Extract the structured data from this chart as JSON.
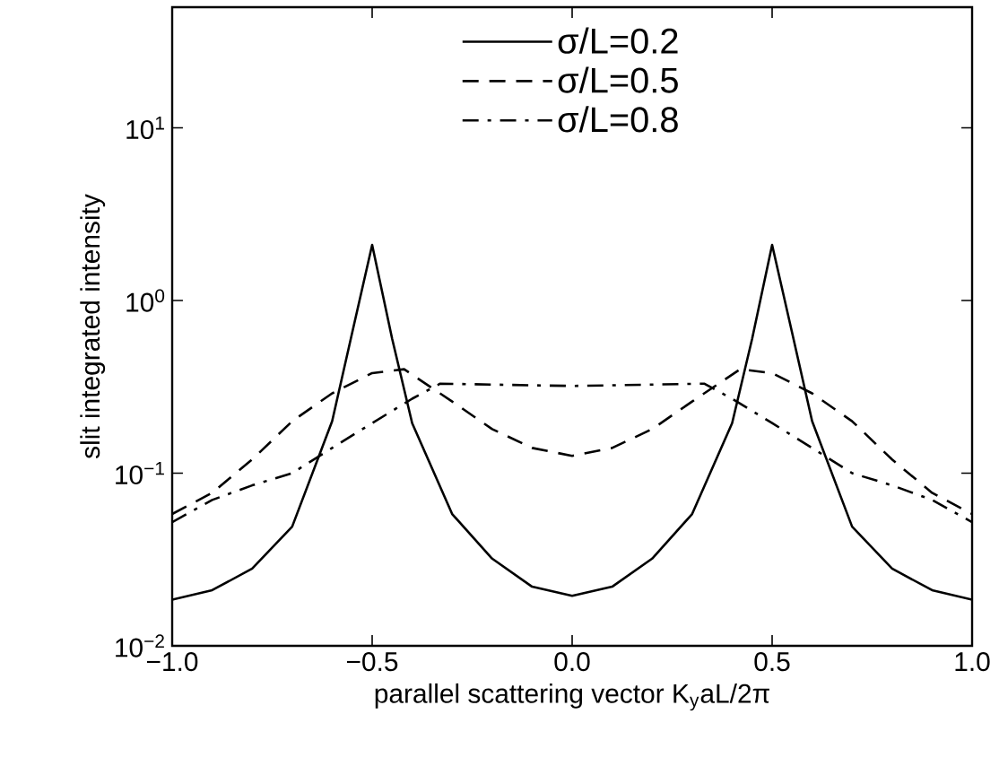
{
  "chart_data": {
    "type": "line",
    "xlabel": "parallel scattering vector K$_{y}$aL/2π",
    "ylabel": "slit integrated intensity",
    "log": "y",
    "grid": false,
    "legend": "top",
    "marker": "none",
    "xlim": [
      -1,
      1
    ],
    "ylim": [
      0.01,
      50
    ],
    "xticks": [
      {
        "value": -1,
        "label": "−1.0"
      },
      {
        "value": -0.5,
        "label": "−0.5"
      },
      {
        "value": 0,
        "label": "0.0"
      },
      {
        "value": 0.5,
        "label": "0.5"
      },
      {
        "value": 1,
        "label": "1.0"
      }
    ],
    "yticks": [
      {
        "value": 0.01,
        "label": "10$^{−2}$"
      },
      {
        "value": 0.1,
        "label": "10$^{−1}$"
      },
      {
        "value": 1,
        "label": "10$^{0}$"
      },
      {
        "value": 10,
        "label": "10$^{1}$"
      }
    ],
    "series": [
      {
        "name": "σ/L=0.2",
        "color": "#000000",
        "line_style": "solid",
        "x": [
          -1,
          -0.9,
          -0.8,
          -0.7,
          -0.6,
          -0.55,
          -0.5,
          -0.45,
          -0.4,
          -0.3,
          -0.2,
          -0.1,
          0,
          0.1,
          0.2,
          0.3,
          0.4,
          0.45,
          0.5,
          0.55,
          0.6,
          0.7,
          0.8,
          0.9,
          1
        ],
        "values": [
          0.0185,
          0.021,
          0.028,
          0.049,
          0.2,
          0.65,
          2.1,
          0.6,
          0.195,
          0.058,
          0.032,
          0.022,
          0.0195,
          0.022,
          0.032,
          0.058,
          0.195,
          0.6,
          2.1,
          0.65,
          0.2,
          0.049,
          0.028,
          0.021,
          0.0185
        ]
      },
      {
        "name": "σ/L=0.5",
        "color": "#000000",
        "line_style": "dashed",
        "x": [
          -1,
          -0.9,
          -0.8,
          -0.7,
          -0.6,
          -0.5,
          -0.42,
          -0.3,
          -0.2,
          -0.1,
          0,
          0.1,
          0.2,
          0.3,
          0.42,
          0.5,
          0.6,
          0.7,
          0.8,
          0.9,
          1
        ],
        "values": [
          0.058,
          0.077,
          0.12,
          0.2,
          0.29,
          0.38,
          0.4,
          0.26,
          0.18,
          0.14,
          0.126,
          0.14,
          0.18,
          0.26,
          0.4,
          0.38,
          0.29,
          0.2,
          0.12,
          0.077,
          0.058
        ]
      },
      {
        "name": "σ/L=0.8",
        "color": "#000000",
        "line_style": "dashdot",
        "x": [
          -1,
          -0.9,
          -0.8,
          -0.7,
          -0.6,
          -0.5,
          -0.4,
          -0.33,
          0,
          0.33,
          0.4,
          0.5,
          0.6,
          0.7,
          0.8,
          0.9,
          1
        ],
        "values": [
          0.052,
          0.07,
          0.085,
          0.1,
          0.14,
          0.195,
          0.27,
          0.33,
          0.32,
          0.33,
          0.27,
          0.195,
          0.14,
          0.1,
          0.085,
          0.07,
          0.052
        ]
      }
    ]
  }
}
